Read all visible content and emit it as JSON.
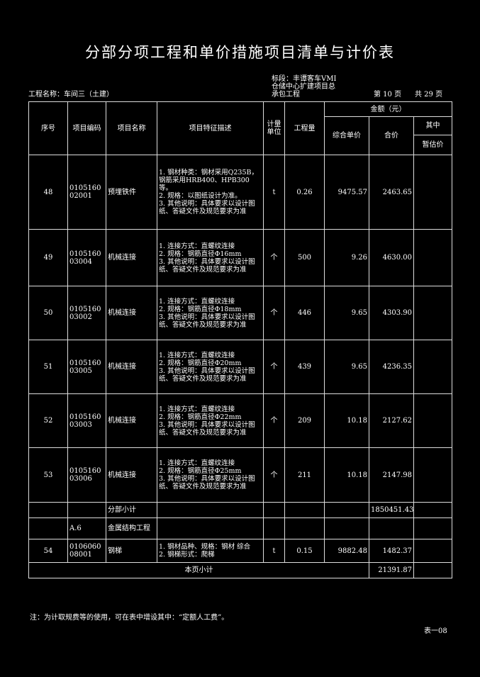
{
  "title": "分部分项工程和单价措施项目清单与计价表",
  "header": {
    "project_label": "工程名称：车间三（土建）",
    "section_lines": [
      "标段：丰谭客车VMI",
      "仓储中心扩建项目总",
      "承包工程"
    ],
    "page_label": "第 10 页",
    "total_label": "共 29 页"
  },
  "columns": {
    "seq": "序号",
    "code": "项目编码",
    "name": "项目名称",
    "desc": "项目特征描述",
    "unit": "计量单位",
    "qty": "工程量",
    "amount": "金额（元）",
    "unit_price": "综合单价",
    "total": "合价",
    "of_which": "其中",
    "provisional": "暂估价"
  },
  "rows": [
    {
      "seq": "48",
      "code": "010516002001",
      "name": "预埋铁件",
      "desc": "1. 钢材种类：钢材采用Q235B，钢筋采用HRB400、HPB300等。\n2. 规格：以图纸设计为准。\n3. 其他说明：具体要求以设计图纸、答疑文件及规范要求为准",
      "unit": "t",
      "qty": "0.26",
      "unit_price": "9475.57",
      "total": "2463.65",
      "provisional": ""
    },
    {
      "seq": "49",
      "code": "010516003004",
      "name": "机械连接",
      "desc": "1. 连接方式：直螺纹连接\n2. 规格：钢筋直径Φ16mm\n3. 其他说明：具体要求以设计图纸、答疑文件及规范要求为准",
      "unit": "个",
      "qty": "500",
      "unit_price": "9.26",
      "total": "4630.00",
      "provisional": ""
    },
    {
      "seq": "50",
      "code": "010516003002",
      "name": "机械连接",
      "desc": "1. 连接方式：直螺纹连接\n2. 规格：钢筋直径Φ18mm\n3. 其他说明：具体要求以设计图纸、答疑文件及规范要求为准",
      "unit": "个",
      "qty": "446",
      "unit_price": "9.65",
      "total": "4303.90",
      "provisional": ""
    },
    {
      "seq": "51",
      "code": "010516003005",
      "name": "机械连接",
      "desc": "1. 连接方式：直螺纹连接\n2. 规格：钢筋直径Φ20mm\n3. 其他说明：具体要求以设计图纸、答疑文件及规范要求为准",
      "unit": "个",
      "qty": "439",
      "unit_price": "9.65",
      "total": "4236.35",
      "provisional": ""
    },
    {
      "seq": "52",
      "code": "010516003003",
      "name": "机械连接",
      "desc": "1. 连接方式：直螺纹连接\n2. 规格：钢筋直径Φ22mm\n3. 其他说明：具体要求以设计图纸、答疑文件及规范要求为准",
      "unit": "个",
      "qty": "209",
      "unit_price": "10.18",
      "total": "2127.62",
      "provisional": ""
    },
    {
      "seq": "53",
      "code": "010516003006",
      "name": "机械连接",
      "desc": "1. 连接方式：直螺纹连接\n2. 规格：钢筋直径Φ25mm\n3. 其他说明：具体要求以设计图纸、答疑文件及规范要求为准",
      "unit": "个",
      "qty": "211",
      "unit_price": "10.18",
      "total": "2147.98",
      "provisional": ""
    }
  ],
  "subtotal": {
    "label": "分部小计",
    "total": "1850451.43"
  },
  "section": {
    "code": "A.6",
    "name": "金属结构工程"
  },
  "row54": {
    "seq": "54",
    "code": "010606008001",
    "name": "钢梯",
    "desc": "1. 钢材品种、规格：钢材 综合\n2. 钢梯形式：爬梯",
    "unit": "t",
    "qty": "0.15",
    "unit_price": "9882.48",
    "total": "1482.37"
  },
  "page_total": {
    "label": "本页小计",
    "total": "21391.87"
  },
  "footer": {
    "note": "注：为计取规费等的使用，可在表中增设其中：“定额人工费”。",
    "form_no": "表一08"
  }
}
